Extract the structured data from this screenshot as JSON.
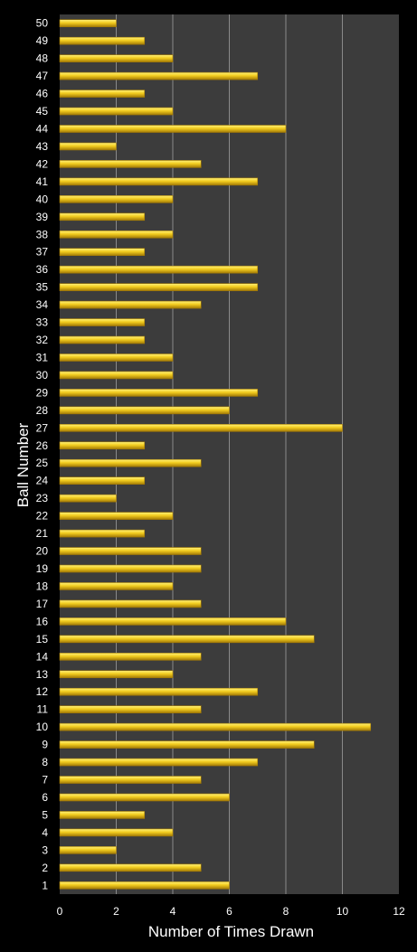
{
  "chart_data": {
    "type": "bar",
    "orientation": "horizontal",
    "xlabel": "Number of Times Drawn",
    "ylabel": "Ball Number",
    "xlim": [
      0,
      12
    ],
    "xticks": [
      "0",
      "2",
      "4",
      "6",
      "8",
      "10",
      "12"
    ],
    "grid": true,
    "legend": "none",
    "categories": [
      "1",
      "2",
      "3",
      "4",
      "5",
      "6",
      "7",
      "8",
      "9",
      "10",
      "11",
      "12",
      "13",
      "14",
      "15",
      "16",
      "17",
      "18",
      "19",
      "20",
      "21",
      "22",
      "23",
      "24",
      "25",
      "26",
      "27",
      "28",
      "29",
      "30",
      "31",
      "32",
      "33",
      "34",
      "35",
      "36",
      "37",
      "38",
      "39",
      "40",
      "41",
      "42",
      "43",
      "44",
      "45",
      "46",
      "47",
      "48",
      "49",
      "50"
    ],
    "values": [
      6,
      5,
      2,
      4,
      3,
      6,
      5,
      7,
      9,
      11,
      5,
      7,
      4,
      5,
      9,
      8,
      5,
      4,
      5,
      5,
      3,
      4,
      2,
      3,
      5,
      3,
      10,
      6,
      7,
      4,
      4,
      3,
      3,
      5,
      7,
      7,
      3,
      4,
      3,
      4,
      7,
      5,
      2,
      8,
      4,
      3,
      7,
      4,
      3,
      2
    ],
    "colors": {
      "background": "#000000",
      "plot_area": "#3c3c3c",
      "bar": "#f2cc1f",
      "bar_highlight": "#fff27a",
      "bar_shadow": "#a37a06",
      "gridline": "#8a8a8a",
      "text": "#ffffff"
    }
  }
}
